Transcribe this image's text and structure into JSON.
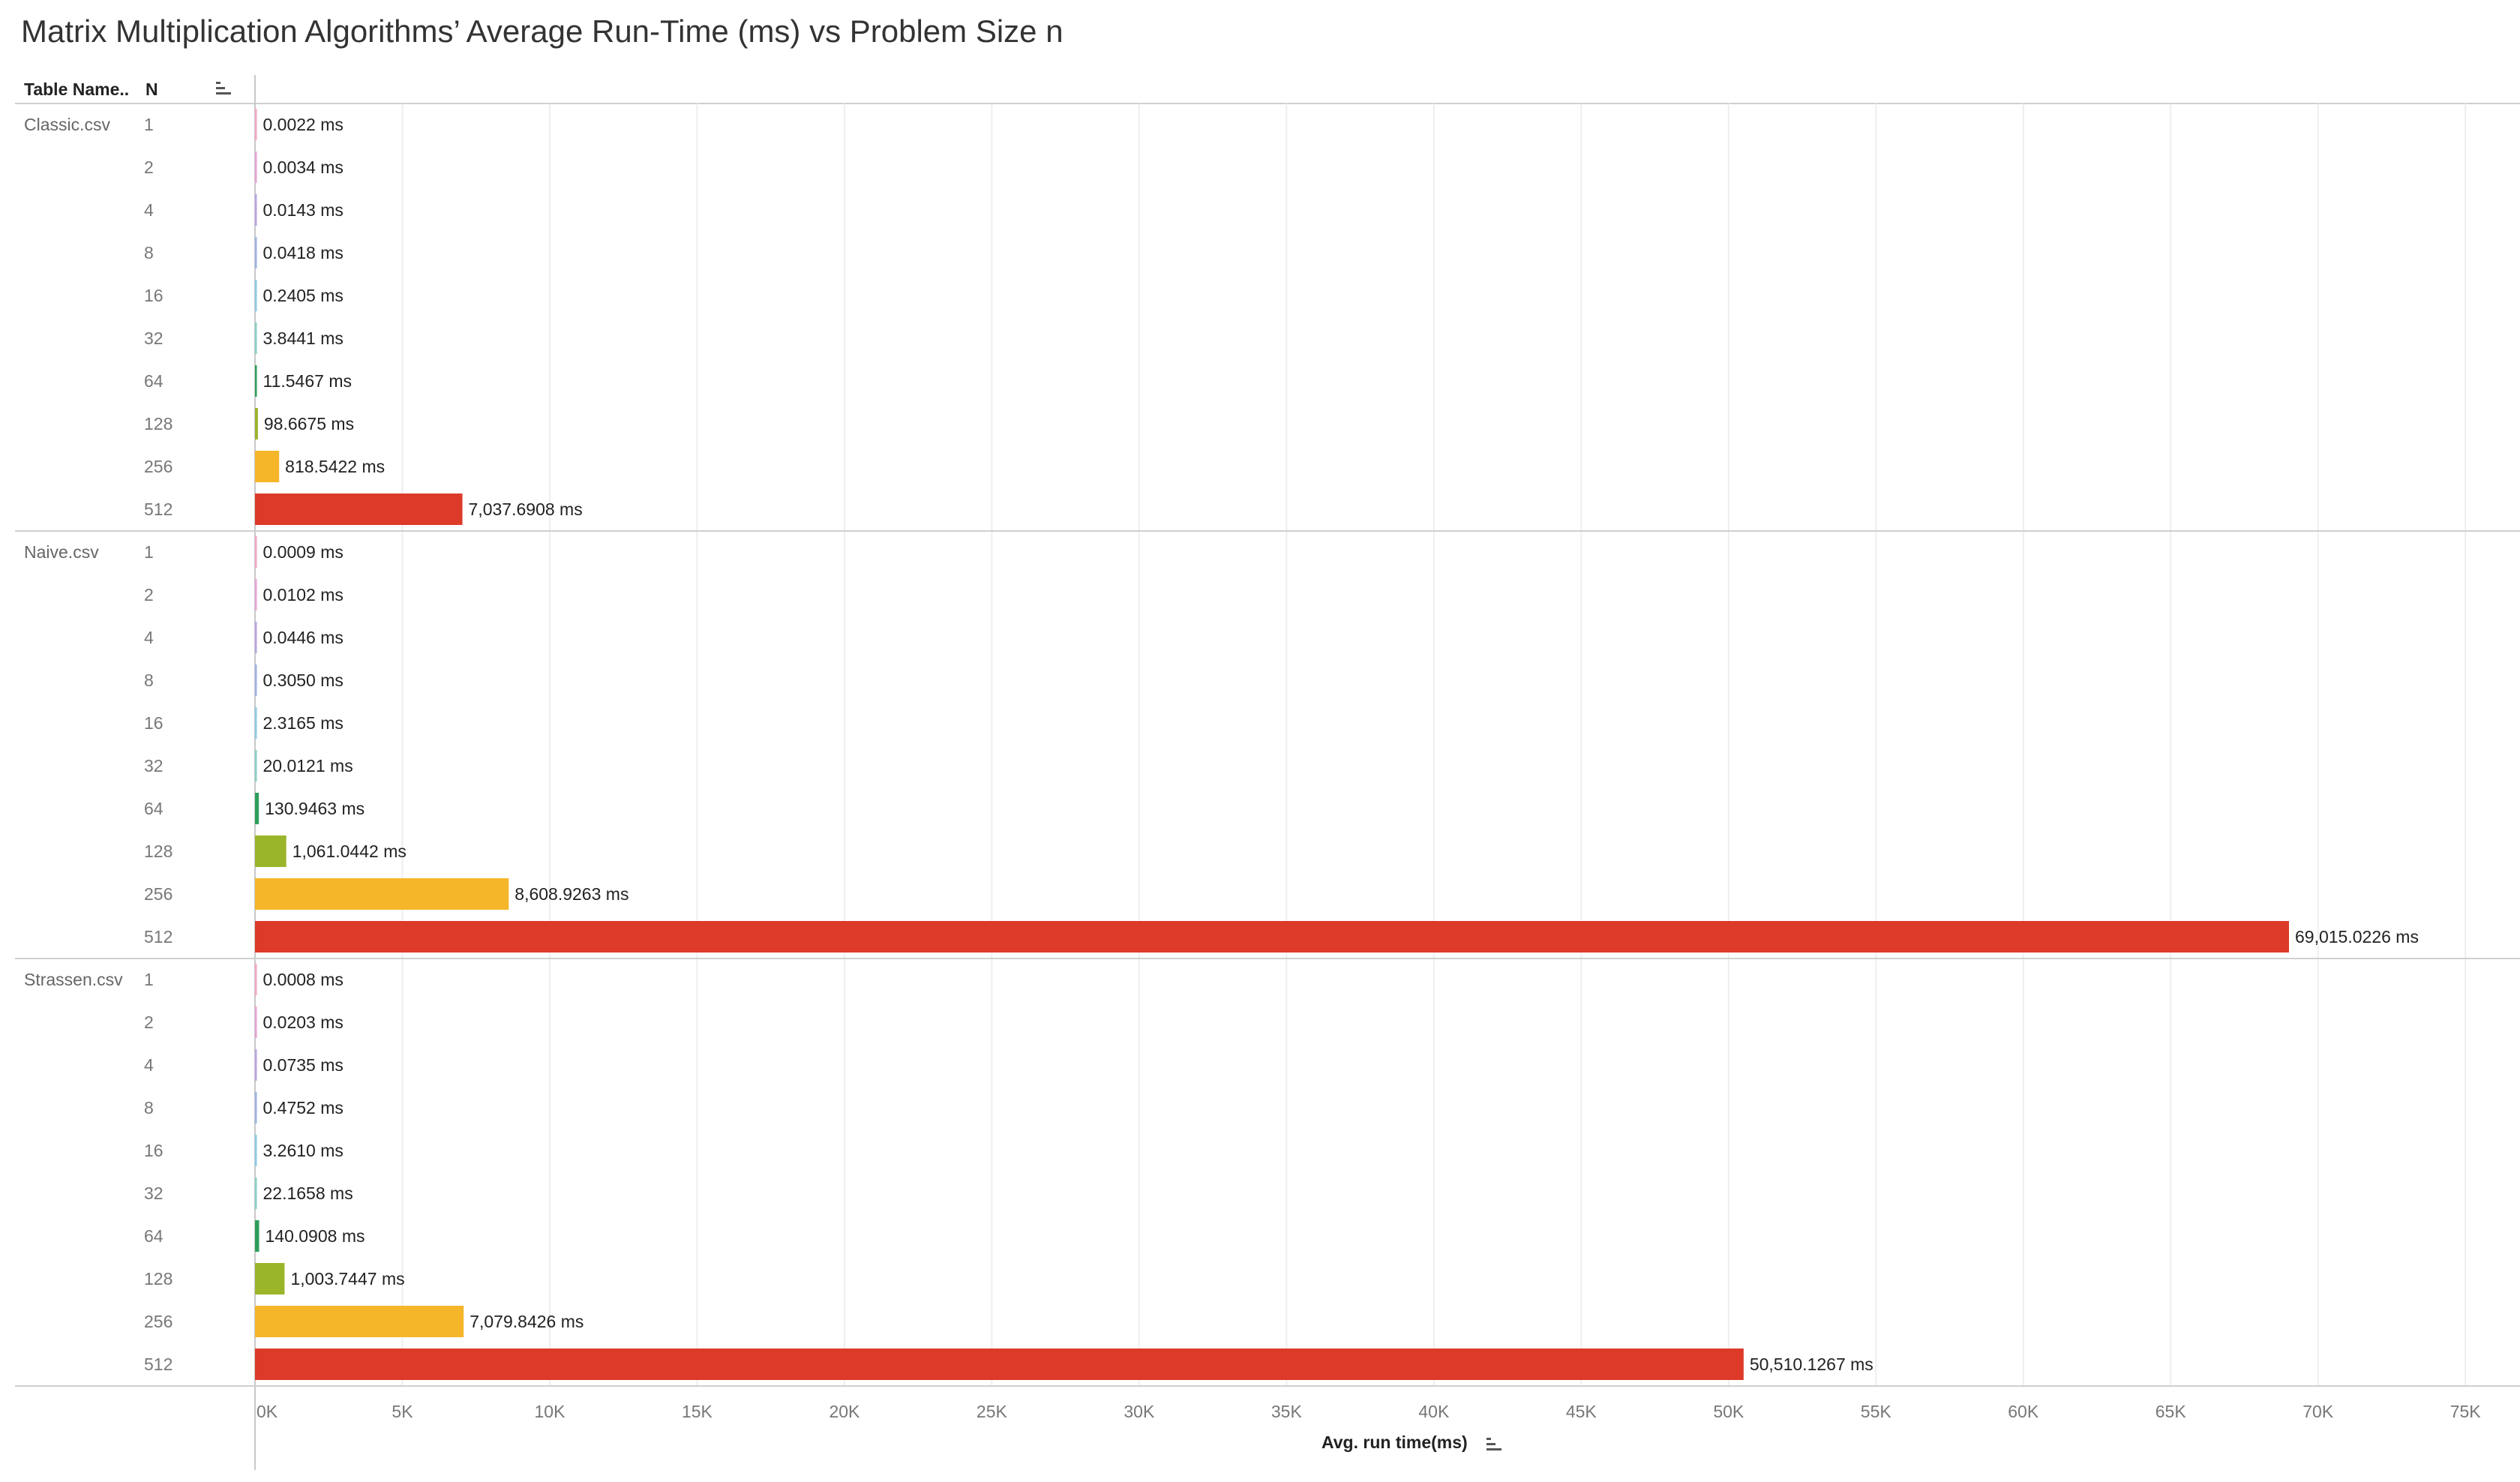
{
  "title": "Matrix Multiplication Algorithms’ Average Run-Time (ms) vs Problem Size n",
  "header": {
    "table_name": "Table Name..",
    "n": "N"
  },
  "chart_data": {
    "type": "bar",
    "orientation": "horizontal",
    "groups": [
      {
        "name": "Classic.csv",
        "categories": [
          "1",
          "2",
          "4",
          "8",
          "16",
          "32",
          "64",
          "128",
          "256",
          "512"
        ],
        "values": [
          0.0022,
          0.0034,
          0.0143,
          0.0418,
          0.2405,
          3.8441,
          11.5467,
          98.6675,
          818.5422,
          7037.6908
        ],
        "labels": [
          "0.0022 ms",
          "0.0034 ms",
          "0.0143 ms",
          "0.0418 ms",
          "0.2405 ms",
          "3.8441 ms",
          "11.5467 ms",
          "98.6675 ms",
          "818.5422 ms",
          "7,037.6908 ms"
        ]
      },
      {
        "name": "Naive.csv",
        "categories": [
          "1",
          "2",
          "4",
          "8",
          "16",
          "32",
          "64",
          "128",
          "256",
          "512"
        ],
        "values": [
          0.0009,
          0.0102,
          0.0446,
          0.305,
          2.3165,
          20.0121,
          130.9463,
          1061.0442,
          8608.9263,
          69015.0226
        ],
        "labels": [
          "0.0009 ms",
          "0.0102 ms",
          "0.0446 ms",
          "0.3050 ms",
          "2.3165 ms",
          "20.0121 ms",
          "130.9463 ms",
          "1,061.0442 ms",
          "8,608.9263 ms",
          "69,015.0226 ms"
        ]
      },
      {
        "name": "Strassen.csv",
        "categories": [
          "1",
          "2",
          "4",
          "8",
          "16",
          "32",
          "64",
          "128",
          "256",
          "512"
        ],
        "values": [
          0.0008,
          0.0203,
          0.0735,
          0.4752,
          3.261,
          22.1658,
          140.0908,
          1003.7447,
          7079.8426,
          50510.1267
        ],
        "labels": [
          "0.0008 ms",
          "0.0203 ms",
          "0.0735 ms",
          "0.4752 ms",
          "3.2610 ms",
          "22.1658 ms",
          "140.0908 ms",
          "1,003.7447 ms",
          "7,079.8426 ms",
          "50,510.1267 ms"
        ]
      }
    ],
    "category_colors": [
      "#f4a6c8",
      "#e9a3d6",
      "#b9a6e0",
      "#9fb3e6",
      "#8ccbe6",
      "#88d1c4",
      "#2e9e5b",
      "#9bb52b",
      "#f6b62a",
      "#dd3a2a"
    ],
    "xlabel": "Avg. run time(ms)",
    "xlim": [
      0,
      77000
    ],
    "xticks": [
      0,
      5000,
      10000,
      15000,
      20000,
      25000,
      30000,
      35000,
      40000,
      45000,
      50000,
      55000,
      60000,
      65000,
      70000,
      75000
    ],
    "xtick_labels": [
      "0K",
      "5K",
      "10K",
      "15K",
      "20K",
      "25K",
      "30K",
      "35K",
      "40K",
      "45K",
      "50K",
      "55K",
      "60K",
      "65K",
      "70K",
      "75K"
    ],
    "grid": "vertical"
  }
}
